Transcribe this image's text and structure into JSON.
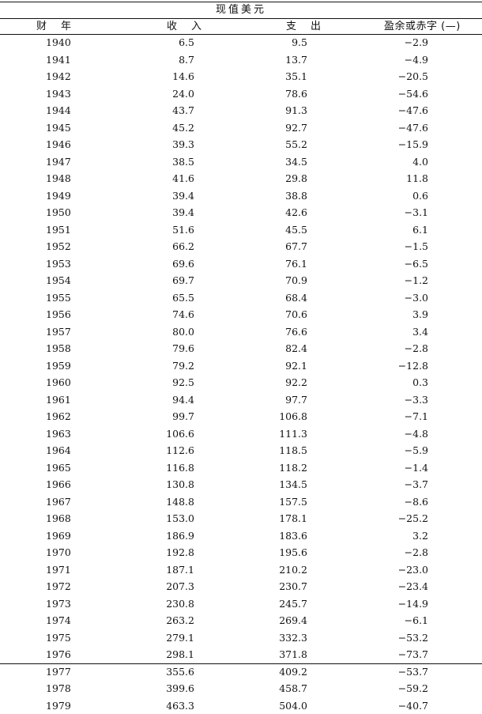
{
  "table": {
    "title": "现值美元",
    "headers": {
      "year": "财年",
      "revenue": "收入",
      "expenditure": "支出",
      "balance": "盈余或赤字 (—)"
    },
    "rows": [
      [
        "1940",
        "6.5",
        "9.5",
        "−2.9"
      ],
      [
        "1941",
        "8.7",
        "13.7",
        "−4.9"
      ],
      [
        "1942",
        "14.6",
        "35.1",
        "−20.5"
      ],
      [
        "1943",
        "24.0",
        "78.6",
        "−54.6"
      ],
      [
        "1944",
        "43.7",
        "91.3",
        "−47.6"
      ],
      [
        "1945",
        "45.2",
        "92.7",
        "−47.6"
      ],
      [
        "1946",
        "39.3",
        "55.2",
        "−15.9"
      ],
      [
        "1947",
        "38.5",
        "34.5",
        "4.0"
      ],
      [
        "1948",
        "41.6",
        "29.8",
        "11.8"
      ],
      [
        "1949",
        "39.4",
        "38.8",
        "0.6"
      ],
      [
        "1950",
        "39.4",
        "42.6",
        "−3.1"
      ],
      [
        "1951",
        "51.6",
        "45.5",
        "6.1"
      ],
      [
        "1952",
        "66.2",
        "67.7",
        "−1.5"
      ],
      [
        "1953",
        "69.6",
        "76.1",
        "−6.5"
      ],
      [
        "1954",
        "69.7",
        "70.9",
        "−1.2"
      ],
      [
        "1955",
        "65.5",
        "68.4",
        "−3.0"
      ],
      [
        "1956",
        "74.6",
        "70.6",
        "3.9"
      ],
      [
        "1957",
        "80.0",
        "76.6",
        "3.4"
      ],
      [
        "1958",
        "79.6",
        "82.4",
        "−2.8"
      ],
      [
        "1959",
        "79.2",
        "92.1",
        "−12.8"
      ],
      [
        "1960",
        "92.5",
        "92.2",
        "0.3"
      ],
      [
        "1961",
        "94.4",
        "97.7",
        "−3.3"
      ],
      [
        "1962",
        "99.7",
        "106.8",
        "−7.1"
      ],
      [
        "1963",
        "106.6",
        "111.3",
        "−4.8"
      ],
      [
        "1964",
        "112.6",
        "118.5",
        "−5.9"
      ],
      [
        "1965",
        "116.8",
        "118.2",
        "−1.4"
      ],
      [
        "1966",
        "130.8",
        "134.5",
        "−3.7"
      ],
      [
        "1967",
        "148.8",
        "157.5",
        "−8.6"
      ],
      [
        "1968",
        "153.0",
        "178.1",
        "−25.2"
      ],
      [
        "1969",
        "186.9",
        "183.6",
        "3.2"
      ],
      [
        "1970",
        "192.8",
        "195.6",
        "−2.8"
      ],
      [
        "1971",
        "187.1",
        "210.2",
        "−23.0"
      ],
      [
        "1972",
        "207.3",
        "230.7",
        "−23.4"
      ],
      [
        "1973",
        "230.8",
        "245.7",
        "−14.9"
      ],
      [
        "1974",
        "263.2",
        "269.4",
        "−6.1"
      ],
      [
        "1975",
        "279.1",
        "332.3",
        "−53.2"
      ],
      [
        "1976",
        "298.1",
        "371.8",
        "−73.7"
      ],
      [
        "1977",
        "355.6",
        "409.2",
        "−53.7"
      ],
      [
        "1978",
        "399.6",
        "458.7",
        "−59.2"
      ],
      [
        "1979",
        "463.3",
        "504.0",
        "−40.7"
      ]
    ]
  }
}
